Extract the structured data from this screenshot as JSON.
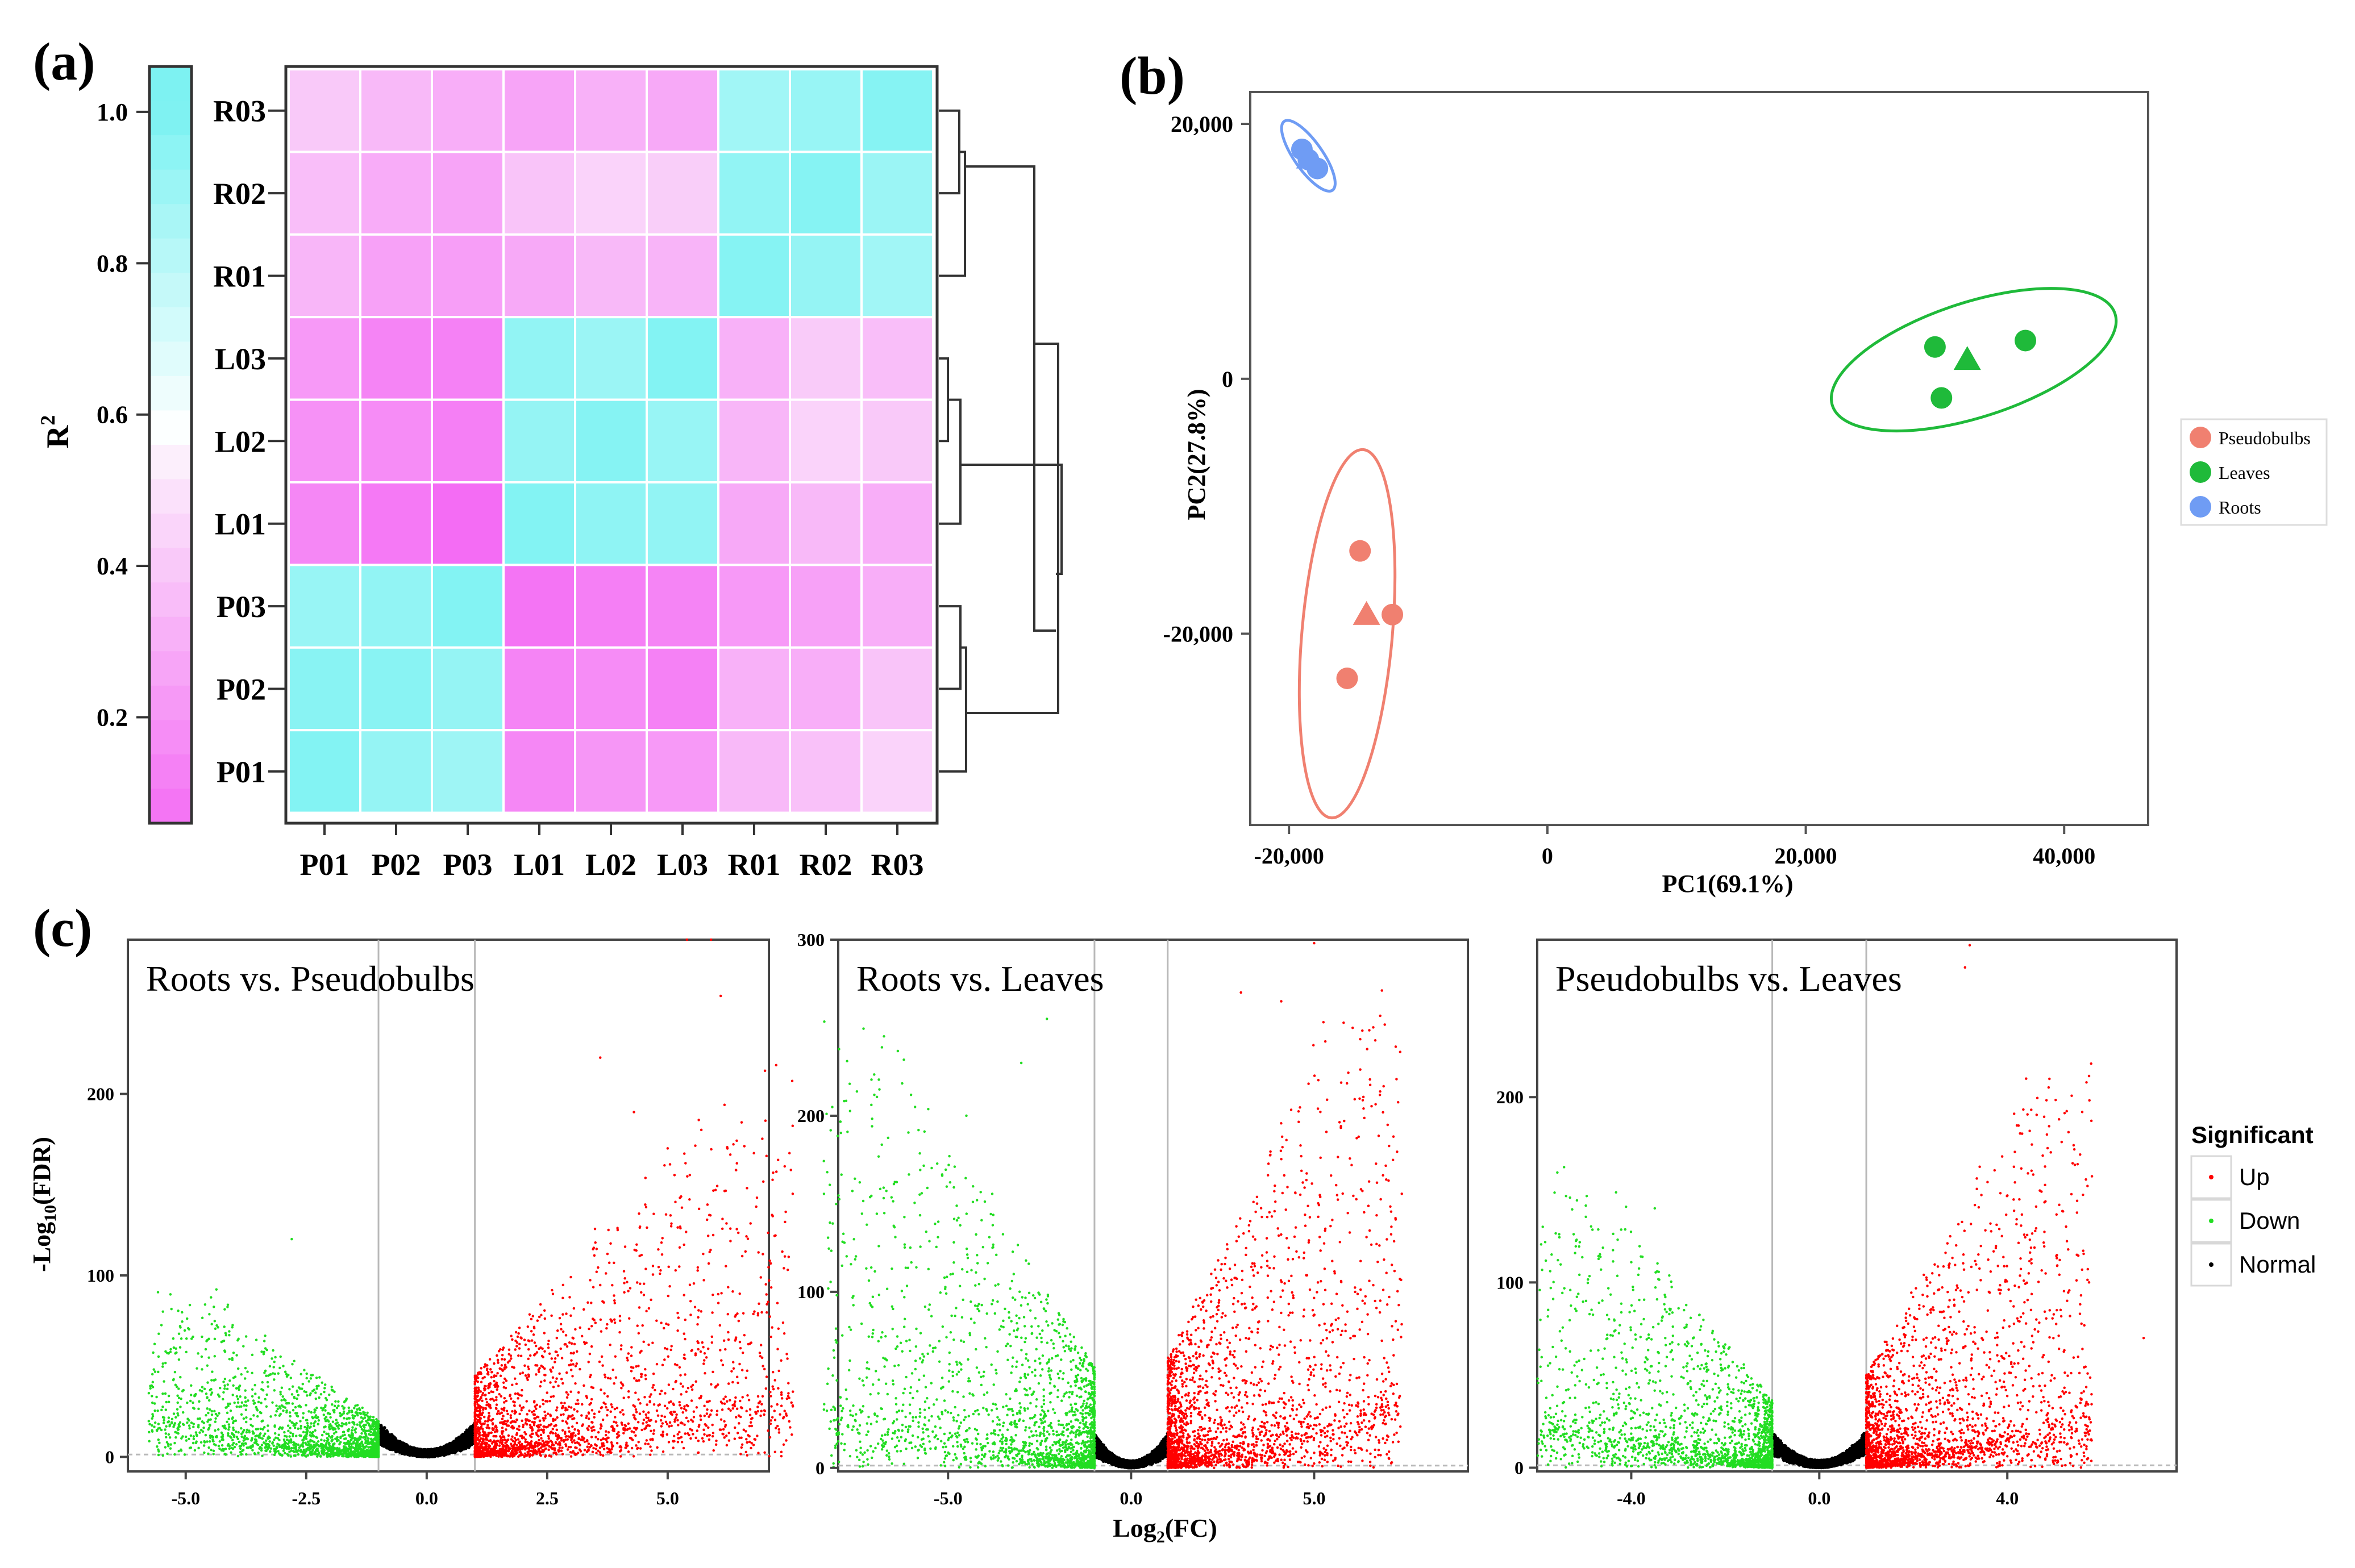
{
  "colors": {
    "magenta": "#f46cf4",
    "pale": "#fbeafb",
    "cyan": "#7df2f2",
    "pseudobulbs": "#f08070",
    "leaves": "#1fba3a",
    "roots": "#6f9cf4",
    "up": "#ff0000",
    "down": "#22dd22",
    "normal": "#000000",
    "frame": "#333333",
    "guide": "#b8b8b8"
  },
  "chart_data": [
    {
      "panel": "(a)",
      "type": "heatmap",
      "title": "",
      "rows": [
        "R03",
        "R02",
        "R01",
        "L03",
        "L02",
        "L01",
        "P03",
        "P02",
        "P01"
      ],
      "columns": [
        "P01",
        "P02",
        "P03",
        "L01",
        "L02",
        "L03",
        "R01",
        "R02",
        "R03"
      ],
      "values": [
        [
          0.4,
          0.34,
          0.3,
          0.26,
          0.31,
          0.28,
          0.88,
          0.91,
          0.97
        ],
        [
          0.36,
          0.29,
          0.26,
          0.38,
          0.44,
          0.42,
          0.93,
          0.97,
          0.9
        ],
        [
          0.33,
          0.25,
          0.24,
          0.28,
          0.34,
          0.32,
          0.97,
          0.92,
          0.88
        ],
        [
          0.22,
          0.14,
          0.13,
          0.93,
          0.9,
          0.98,
          0.31,
          0.41,
          0.36
        ],
        [
          0.19,
          0.17,
          0.12,
          0.92,
          0.97,
          0.91,
          0.33,
          0.44,
          0.4
        ],
        [
          0.15,
          0.1,
          0.05,
          0.98,
          0.94,
          0.93,
          0.28,
          0.34,
          0.3
        ],
        [
          0.91,
          0.93,
          0.98,
          0.08,
          0.12,
          0.14,
          0.22,
          0.25,
          0.3
        ],
        [
          0.96,
          0.96,
          0.92,
          0.14,
          0.17,
          0.13,
          0.31,
          0.3,
          0.38
        ],
        [
          0.98,
          0.92,
          0.89,
          0.15,
          0.21,
          0.22,
          0.34,
          0.37,
          0.44
        ]
      ],
      "colorbar": {
        "label": "R²",
        "label_base": "R",
        "label_sup": "2",
        "ticks": [
          "0.2",
          "0.4",
          "0.6",
          "0.8",
          "1.0"
        ],
        "tick_values": [
          0.2,
          0.4,
          0.6,
          0.8,
          1.0
        ],
        "range": [
          0.06,
          1.06
        ]
      },
      "dendrogram": "hierarchical clustering of samples (right side)"
    },
    {
      "panel": "(b)",
      "type": "scatter",
      "title": "",
      "xlabel": "PC1(69.1%)",
      "ylabel": "PC2(27.8%)",
      "xlim": [
        -23000,
        46500
      ],
      "ylim": [
        -35000,
        22500
      ],
      "xticks": [
        -20000,
        0,
        20000,
        40000
      ],
      "xtick_labels": [
        "-20,000",
        "0",
        "20,000",
        "40,000"
      ],
      "yticks": [
        -20000,
        0,
        20000
      ],
      "ytick_labels": [
        "-20,000",
        "0",
        "20,000"
      ],
      "legend": [
        "Pseudobulbs",
        "Leaves",
        "Roots"
      ],
      "series": [
        {
          "name": "Pseudobulbs",
          "points": [
            {
              "x": -14500,
              "y": -13500
            },
            {
              "x": -12000,
              "y": -18500
            },
            {
              "x": -15500,
              "y": -23500
            }
          ],
          "centroid": {
            "x": -14000,
            "y": -18500
          },
          "ellipse": {
            "cx": -15500,
            "cy": -20000,
            "rx": 3500,
            "ry": 14500,
            "angle_deg": 5
          }
        },
        {
          "name": "Leaves",
          "points": [
            {
              "x": 30000,
              "y": 2500
            },
            {
              "x": 37000,
              "y": 3000
            },
            {
              "x": 30500,
              "y": -1500
            }
          ],
          "centroid": {
            "x": 32500,
            "y": 1500
          },
          "ellipse": {
            "cx": 33000,
            "cy": 1500,
            "rx": 11500,
            "ry": 4500,
            "angle_deg": -18
          }
        },
        {
          "name": "Roots",
          "points": [
            {
              "x": -19000,
              "y": 18000
            },
            {
              "x": -18500,
              "y": 17200
            },
            {
              "x": -17800,
              "y": 16500
            }
          ],
          "centroid": {
            "x": -18400,
            "y": 17300
          },
          "ellipse": {
            "cx": -18500,
            "cy": 17500,
            "rx": 1100,
            "ry": 3300,
            "angle_deg": -35
          }
        }
      ]
    },
    {
      "panel": "(c)",
      "type": "scatter",
      "subtype": "volcano",
      "xlabel": "Log₂(FC)",
      "xlabel_base": "Log",
      "xlabel_sub": "2",
      "xlabel_tail": "(FC)",
      "ylabel": "-Log₁₀(FDR)",
      "ylabel_head": "-Log",
      "ylabel_sub": "10",
      "ylabel_tail": "(FDR)",
      "fc_threshold": 1,
      "legend_title": "Significant",
      "legend": [
        "Up",
        "Down",
        "Normal"
      ],
      "plots": [
        {
          "title": "Roots vs. Pseudobulbs",
          "xlim": [
            -6.2,
            7.1
          ],
          "ylim": [
            -8,
            285
          ],
          "xticks": [
            -5.0,
            -2.5,
            0.0,
            2.5,
            5.0
          ],
          "xtick_labels": [
            "-5.0",
            "-2.5",
            "0.0",
            "2.5",
            "5.0"
          ],
          "yticks": [
            0,
            100,
            200
          ],
          "ytick_labels": [
            "0",
            "100",
            "200"
          ],
          "down_spread": 4.8,
          "up_spread": 6.6,
          "down_height": 80,
          "up_height": 180,
          "highlights": [
            {
              "x": 5.4,
              "y": 285,
              "group": "up"
            },
            {
              "x": 5.9,
              "y": 285,
              "group": "up"
            },
            {
              "x": 6.1,
              "y": 254,
              "group": "up"
            },
            {
              "x": 3.6,
              "y": 220,
              "group": "up"
            },
            {
              "x": 4.3,
              "y": 190,
              "group": "up"
            },
            {
              "x": 5.0,
              "y": 170,
              "group": "up"
            },
            {
              "x": -2.8,
              "y": 120,
              "group": "down"
            }
          ]
        },
        {
          "title": "Roots vs. Leaves",
          "xlim": [
            -8.0,
            9.2
          ],
          "ylim": [
            -2,
            300
          ],
          "xticks": [
            -5.0,
            0.0,
            5.0
          ],
          "xtick_labels": [
            "-5.0",
            "0.0",
            "5.0"
          ],
          "yticks": [
            0,
            100,
            200,
            300
          ],
          "ytick_labels": [
            "0",
            "100",
            "200",
            "300"
          ],
          "down_spread": 7.4,
          "up_spread": 6.4,
          "down_height": 230,
          "up_height": 250,
          "highlights": [
            {
              "x": 5.0,
              "y": 298,
              "group": "up"
            },
            {
              "x": 3.0,
              "y": 270,
              "group": "up"
            },
            {
              "x": 4.1,
              "y": 265,
              "group": "up"
            },
            {
              "x": -2.3,
              "y": 255,
              "group": "down"
            },
            {
              "x": -3.0,
              "y": 230,
              "group": "down"
            },
            {
              "x": -4.5,
              "y": 200,
              "group": "down"
            }
          ]
        },
        {
          "title": "Pseudobulbs vs. Leaves",
          "xlim": [
            -6.0,
            7.6
          ],
          "ylim": [
            -2,
            285
          ],
          "xticks": [
            -4.0,
            0.0,
            4.0
          ],
          "xtick_labels": [
            "-4.0",
            "0.0",
            "4.0"
          ],
          "yticks": [
            0,
            100,
            200
          ],
          "ytick_labels": [
            "0",
            "100",
            "200"
          ],
          "down_spread": 5.0,
          "up_spread": 4.8,
          "down_height": 145,
          "up_height": 200,
          "highlights": [
            {
              "x": 3.2,
              "y": 282,
              "group": "up"
            },
            {
              "x": 3.1,
              "y": 270,
              "group": "up"
            },
            {
              "x": 4.4,
              "y": 210,
              "group": "up"
            },
            {
              "x": 5.1,
              "y": 188,
              "group": "up"
            },
            {
              "x": 6.9,
              "y": 70,
              "group": "up"
            },
            {
              "x": -3.5,
              "y": 140,
              "group": "down"
            }
          ]
        }
      ]
    }
  ]
}
